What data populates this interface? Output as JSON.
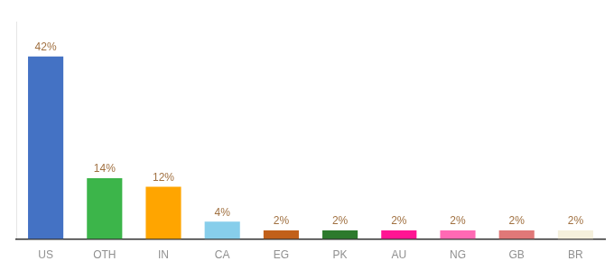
{
  "chart_data": {
    "type": "bar",
    "categories": [
      "US",
      "OTH",
      "IN",
      "CA",
      "EG",
      "PK",
      "AU",
      "NG",
      "GB",
      "BR"
    ],
    "values": [
      42,
      14,
      12,
      4,
      2,
      2,
      2,
      2,
      2,
      2
    ],
    "value_labels": [
      "42%",
      "14%",
      "12%",
      "4%",
      "2%",
      "2%",
      "2%",
      "2%",
      "2%",
      "2%"
    ],
    "data_labels": true,
    "colors": [
      "#4472C4",
      "#3CB54A",
      "#FFA500",
      "#87CEEB",
      "#C1601A",
      "#2D7A2D",
      "#FF1493",
      "#FF69B4",
      "#E07878",
      "#F5F0DC"
    ],
    "ylim": [
      0,
      50
    ],
    "grid": false,
    "tick_labels": "x"
  }
}
